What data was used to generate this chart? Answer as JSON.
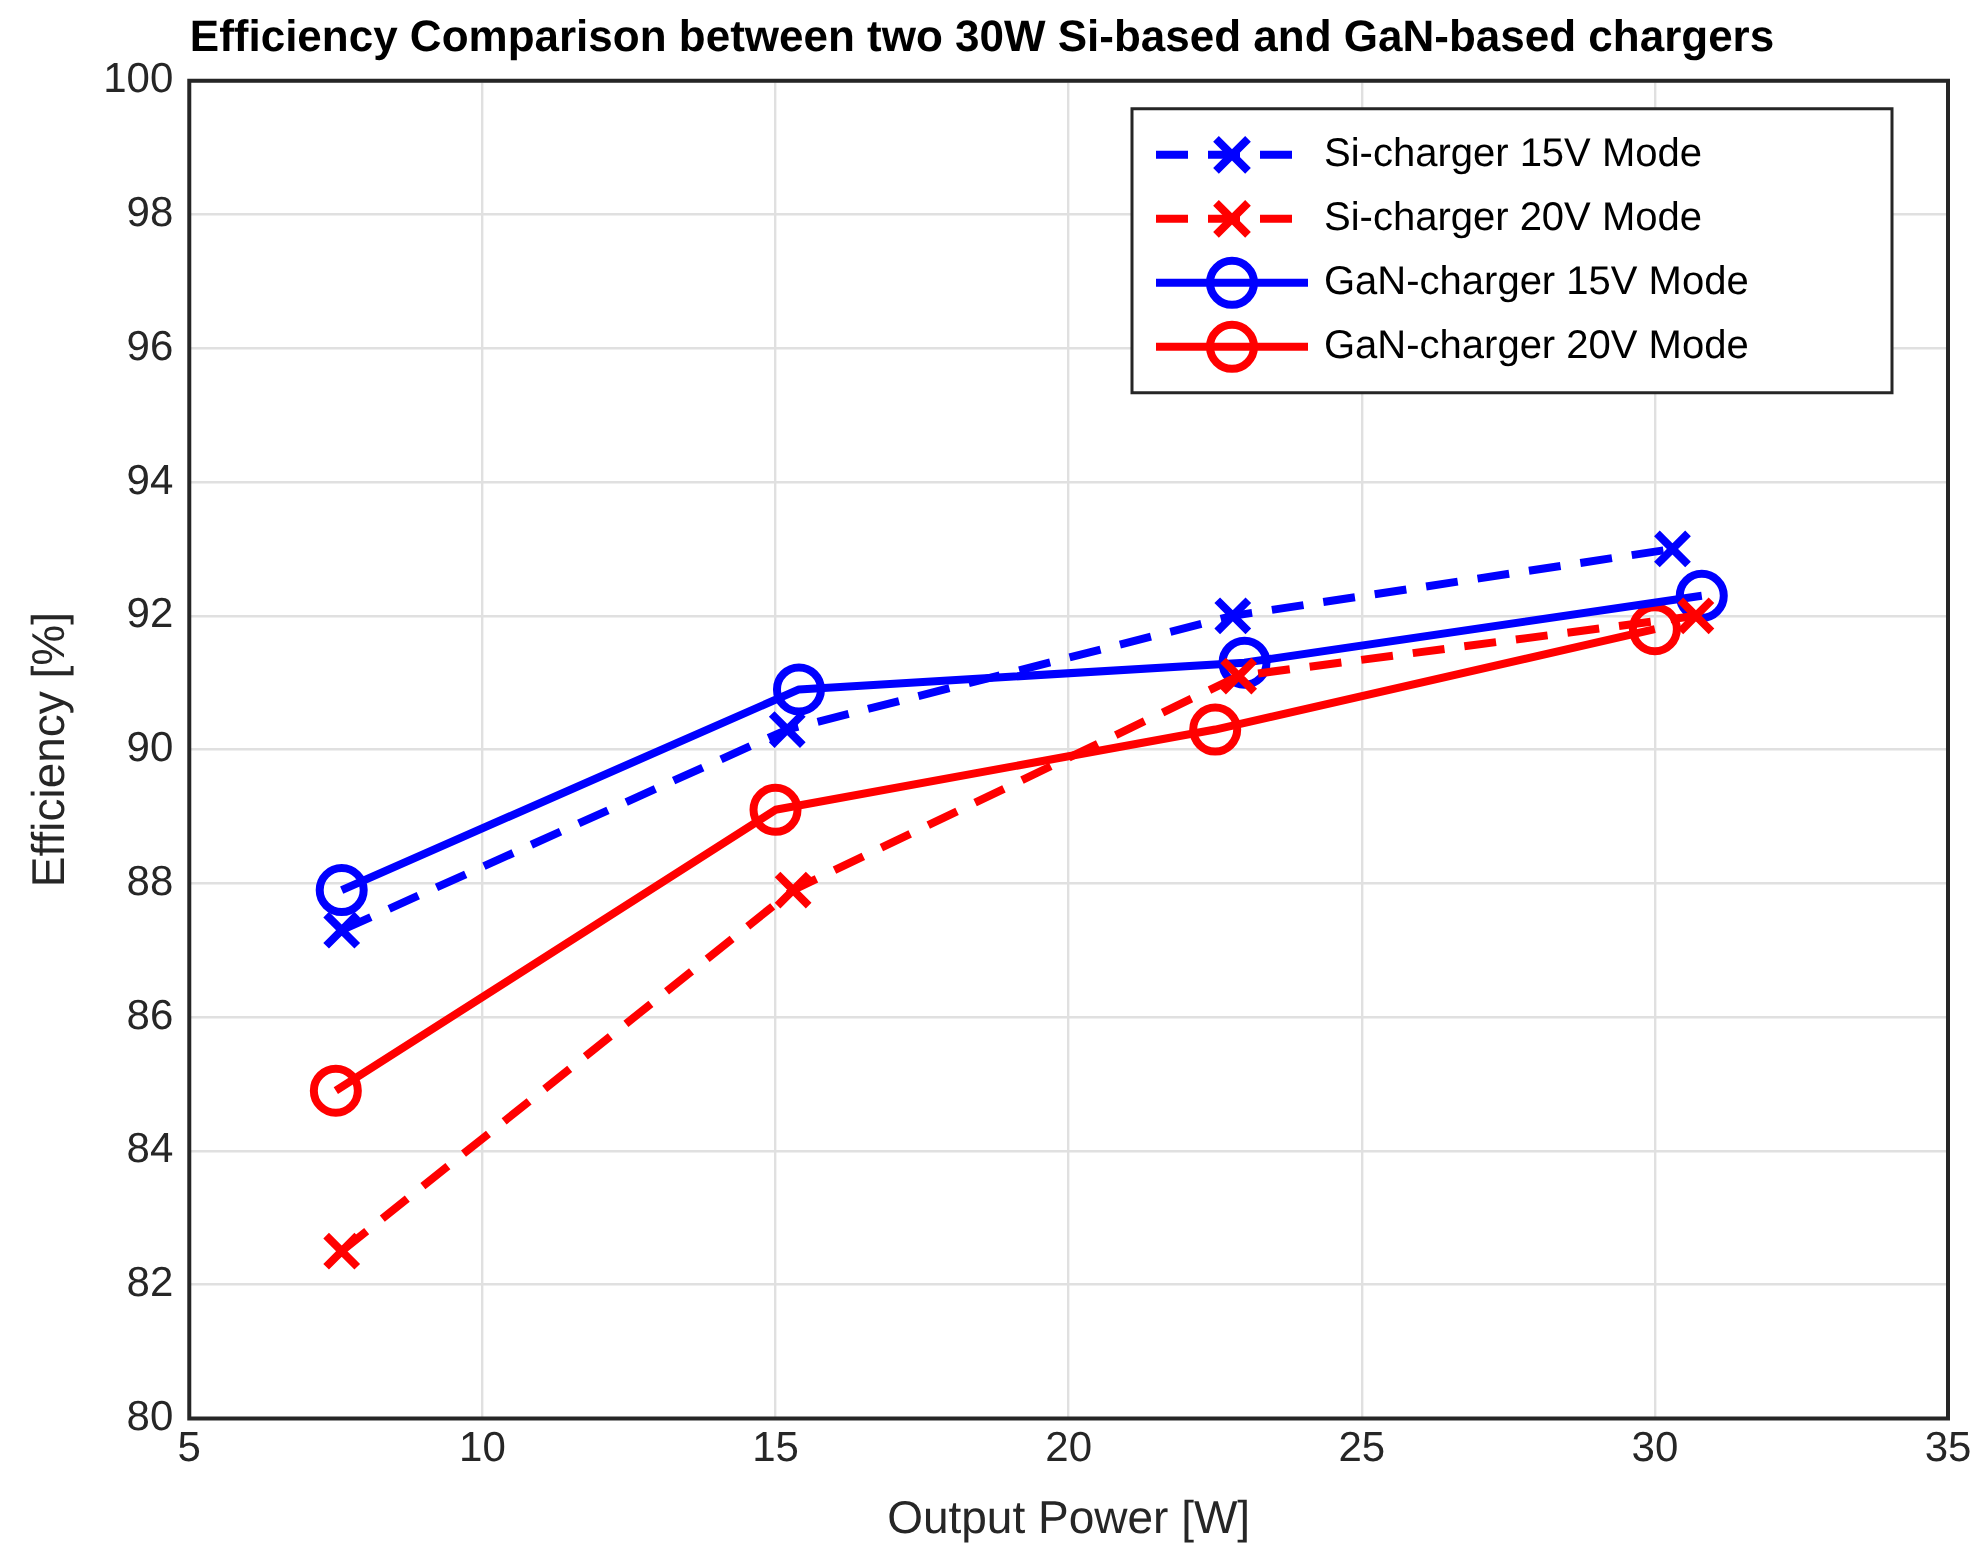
{
  "chart_data": {
    "type": "line",
    "title": "Efficiency Comparison between two 30W Si-based and GaN-based chargers",
    "xlabel": "Output Power [W]",
    "ylabel": "Efficiency [%]",
    "xlim": [
      5,
      35
    ],
    "xticks": [
      5,
      10,
      15,
      20,
      25,
      30,
      35
    ],
    "ylim": [
      80,
      100
    ],
    "yticks": [
      80,
      82,
      84,
      86,
      88,
      90,
      92,
      94,
      96,
      98,
      100
    ],
    "grid": true,
    "legend": "top right",
    "series": [
      {
        "name": "Si-charger 15V Mode",
        "color": "#0000ff",
        "marker": "cross",
        "line_style": "dashed",
        "x": [
          7.6,
          15.2,
          22.8,
          30.3
        ],
        "values": [
          87.3,
          90.3,
          92.0,
          93.0
        ]
      },
      {
        "name": "Si-charger 20V Mode",
        "color": "#ff0000",
        "marker": "cross",
        "line_style": "dashed",
        "x": [
          7.6,
          15.3,
          22.9,
          30.7
        ],
        "values": [
          82.5,
          87.9,
          91.1,
          92.0
        ]
      },
      {
        "name": "GaN-charger 15V Mode",
        "color": "#0000ff",
        "marker": "circle",
        "line_style": "solid",
        "x": [
          7.6,
          15.4,
          23.0,
          30.8
        ],
        "values": [
          87.9,
          90.9,
          91.3,
          92.3
        ]
      },
      {
        "name": "GaN-charger 20V Mode",
        "color": "#ff0000",
        "marker": "circle",
        "line_style": "solid",
        "x": [
          7.5,
          15.0,
          22.5,
          30.0
        ],
        "values": [
          84.9,
          89.1,
          90.3,
          91.8
        ]
      }
    ]
  }
}
